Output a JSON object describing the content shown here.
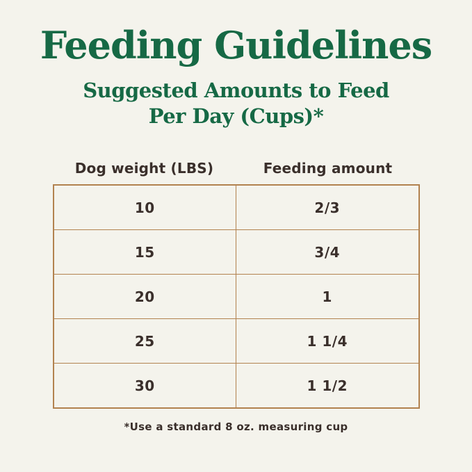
{
  "page": {
    "background_color": "#f4f3ec",
    "title_color": "#166945",
    "text_color": "#3a2f2b",
    "table_border_color": "#b2824f"
  },
  "header": {
    "title": "Feeding Guidelines",
    "subtitle_line1": "Suggested Amounts to Feed",
    "subtitle_line2": "Per Day (Cups)*"
  },
  "table": {
    "columns": [
      "Dog weight (LBS)",
      "Feeding amount"
    ],
    "rows": [
      {
        "dog_weight_lbs": "10",
        "feeding_amount": "2/3"
      },
      {
        "dog_weight_lbs": "15",
        "feeding_amount": "3/4"
      },
      {
        "dog_weight_lbs": "20",
        "feeding_amount": "1"
      },
      {
        "dog_weight_lbs": "25",
        "feeding_amount": "1 1/4"
      },
      {
        "dog_weight_lbs": "30",
        "feeding_amount": "1 1/2"
      }
    ]
  },
  "footnote": "*Use a standard 8 oz. measuring cup",
  "chart_data": {
    "type": "table",
    "title": "Feeding Guidelines",
    "subtitle": "Suggested Amounts to Feed Per Day (Cups)*",
    "columns": [
      "Dog weight (LBS)",
      "Feeding amount"
    ],
    "rows": [
      [
        "10",
        "2/3"
      ],
      [
        "15",
        "3/4"
      ],
      [
        "20",
        "1"
      ],
      [
        "25",
        "1 1/4"
      ],
      [
        "30",
        "1 1/2"
      ]
    ],
    "footnote": "*Use a standard 8 oz. measuring cup"
  }
}
